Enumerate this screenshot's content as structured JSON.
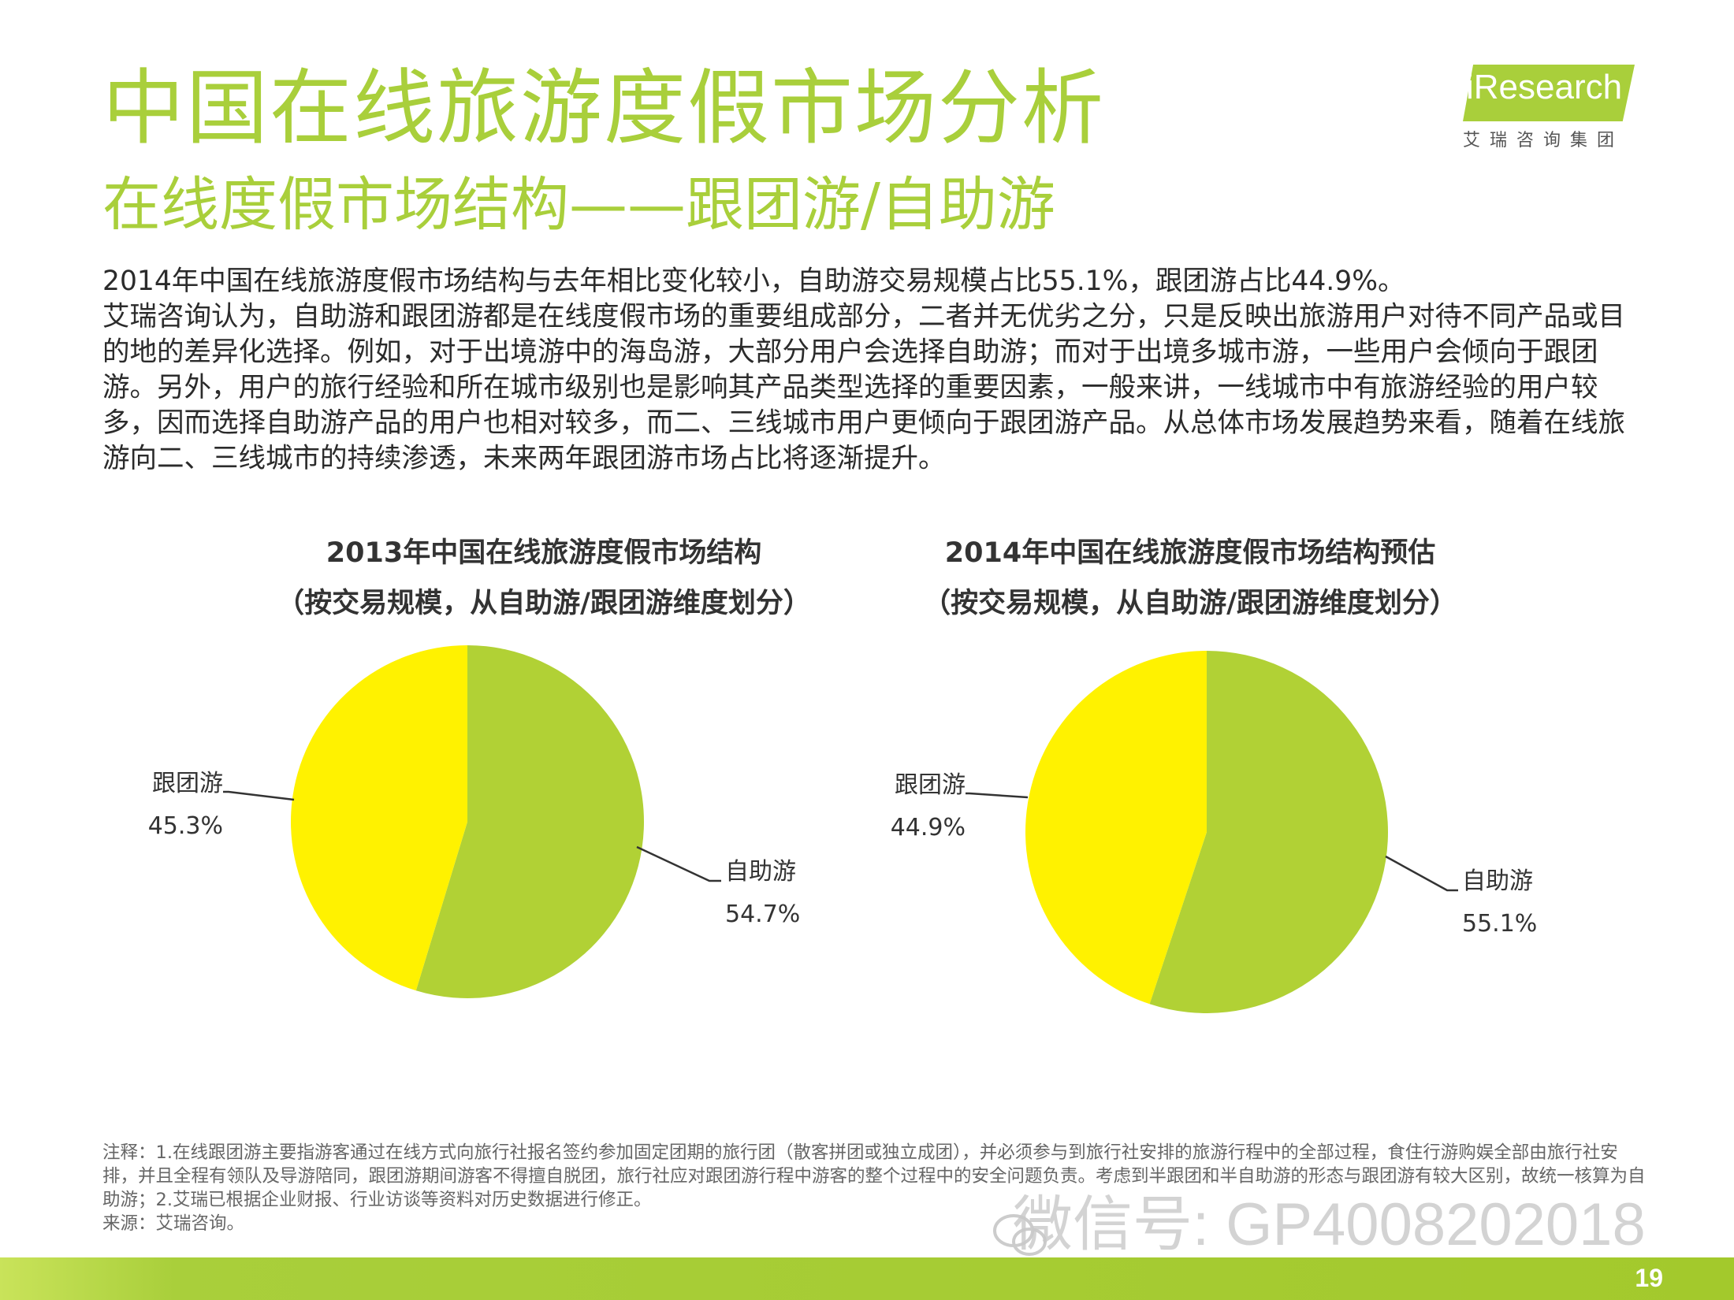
{
  "header": {
    "title": "中国在线旅游度假市场分析",
    "subtitle": "在线度假市场结构——跟团游/自助游",
    "logo_text": "iResearch",
    "logo_cn": "艾瑞咨询集团"
  },
  "body_paragraphs": [
    "2014年中国在线旅游度假市场结构与去年相比变化较小，自助游交易规模占比55.1%，跟团游占比44.9%。",
    "艾瑞咨询认为，自助游和跟团游都是在线度假市场的重要组成部分，二者并无优劣之分，只是反映出旅游用户对待不同产品或目的地的差异化选择。例如，对于出境游中的海岛游，大部分用户会选择自助游；而对于出境多城市游，一些用户会倾向于跟团游。另外，用户的旅行经验和所在城市级别也是影响其产品类型选择的重要因素，一般来讲，一线城市中有旅游经验的用户较多，因而选择自助游产品的用户也相对较多，而二、三线城市用户更倾向于跟团游产品。从总体市场发展趋势来看，随着在线旅游向二、三线城市的持续渗透，未来两年跟团游市场占比将逐渐提升。"
  ],
  "chart_data": [
    {
      "type": "pie",
      "title": "2013年中国在线旅游度假市场结构",
      "subtitle": "（按交易规模，从自助游/跟团游维度划分）",
      "categories": [
        "自助游",
        "跟团游"
      ],
      "values": [
        54.7,
        45.3
      ],
      "labels": [
        "54.7%",
        "45.3%"
      ],
      "colors": [
        "#b1d135",
        "#fff200"
      ]
    },
    {
      "type": "pie",
      "title": "2014年中国在线旅游度假市场结构预估",
      "subtitle": "（按交易规模，从自助游/跟团游维度划分）",
      "categories": [
        "自助游",
        "跟团游"
      ],
      "values": [
        55.1,
        44.9
      ],
      "labels": [
        "55.1%",
        "44.9%"
      ],
      "colors": [
        "#b1d135",
        "#fff200"
      ]
    }
  ],
  "footnote": {
    "note": "注释：1.在线跟团游主要指游客通过在线方式向旅行社报名签约参加固定团期的旅行团（散客拼团或独立成团），并必须参与到旅行社安排的旅游行程中的全部过程，食住行游购娱全部由旅行社安排，并且全程有领队及导游陪同，跟团游期间游客不得擅自脱团，旅行社应对跟团游行程中游客的整个过程中的安全问题负责。考虑到半跟团和半自助游的形态与跟团游有较大区别，故统一核算为自助游；2.艾瑞已根据企业财报、行业访谈等资料对历史数据进行修正。",
    "source": "来源：艾瑞咨询。"
  },
  "watermark": "微信号: GP4008202018",
  "page_number": "19"
}
